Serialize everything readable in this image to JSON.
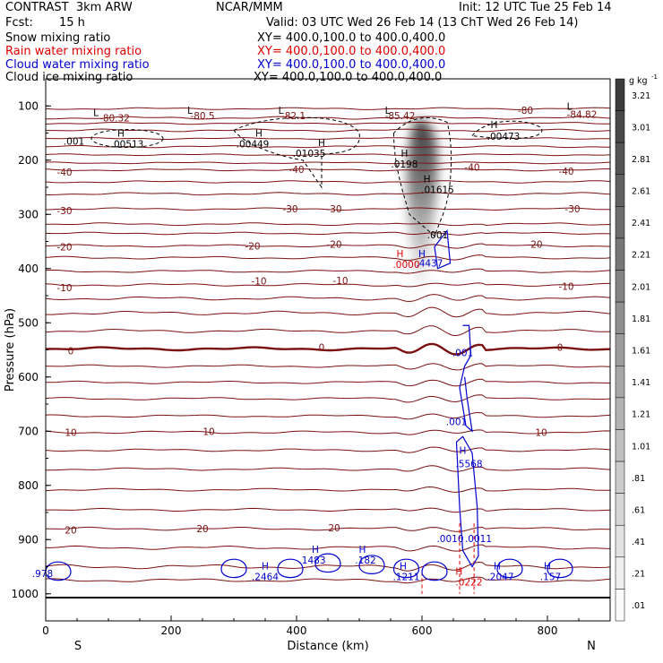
{
  "header": {
    "title": "CONTRAST  3km ARW",
    "center": "NCAR/MMM",
    "init": "Init: 12 UTC Tue 25 Feb 14",
    "fcst_label": "Fcst:",
    "fcst_value": "15 h",
    "valid": "Valid: 03 UTC Wed 26 Feb 14 (13 ChT Wed 26 Feb 14)",
    "fields": [
      {
        "name": "Snow mixing ratio",
        "xy": "XY= 400.0,100.0 to 400.0,400.0",
        "color": "#000000"
      },
      {
        "name": "Rain water mixing ratio",
        "xy": "XY= 400.0,100.0 to 400.0,400.0",
        "color": "#e00000"
      },
      {
        "name": "Cloud water mixing ratio",
        "xy": "XY= 400.0,100.0 to 400.0,400.0",
        "color": "#0000d0"
      },
      {
        "name": "Cloud ice mixing ratio",
        "xy": "XY= 400.0,100.0 to 400.0,400.0",
        "color": "#000000"
      }
    ]
  },
  "chart_data": {
    "type": "cross-section contour",
    "xlabel": "Distance (km)",
    "ylabel": "Pressure (hPa)",
    "xlim": [
      0,
      900
    ],
    "ylim": [
      1050,
      50
    ],
    "x_ticks": [
      0,
      200,
      400,
      600,
      800
    ],
    "y_ticks": [
      100,
      200,
      300,
      400,
      500,
      600,
      700,
      800,
      900,
      1000
    ],
    "x_end_labels": {
      "left": "S",
      "right": "N"
    },
    "colorbar": {
      "unit_label": "g kg",
      "unit_exp": "-1",
      "levels": [
        "3.21",
        "3.01",
        "2.81",
        "2.61",
        "2.41",
        "2.21",
        "2.01",
        "1.81",
        "1.61",
        "1.41",
        "1.21",
        "1.01",
        ".81",
        ".61",
        ".41",
        ".21",
        ".01"
      ]
    },
    "temperature_contours": [
      {
        "label": "-80.32",
        "x": 110,
        "p": 122
      },
      {
        "label": "-80.5",
        "x": 250,
        "p": 118
      },
      {
        "label": "-82.1",
        "x": 395,
        "p": 118
      },
      {
        "label": "-85.42",
        "x": 565,
        "p": 118
      },
      {
        "label": "-80",
        "x": 765,
        "p": 108
      },
      {
        "label": "-84.82",
        "x": 855,
        "p": 115
      },
      {
        "label": "-40",
        "x": 30,
        "p": 222
      },
      {
        "label": "-40",
        "x": 400,
        "p": 217
      },
      {
        "label": "-40",
        "x": 680,
        "p": 213
      },
      {
        "label": "-40",
        "x": 830,
        "p": 220
      },
      {
        "label": "-30",
        "x": 30,
        "p": 293
      },
      {
        "label": "-30",
        "x": 390,
        "p": 290
      },
      {
        "label": "-30",
        "x": 460,
        "p": 290
      },
      {
        "label": "-30",
        "x": 840,
        "p": 290
      },
      {
        "label": "-20",
        "x": 30,
        "p": 360
      },
      {
        "label": "-20",
        "x": 330,
        "p": 358
      },
      {
        "label": "-20",
        "x": 460,
        "p": 355
      },
      {
        "label": "-20",
        "x": 780,
        "p": 355
      },
      {
        "label": "-10",
        "x": 30,
        "p": 435
      },
      {
        "label": "-10",
        "x": 340,
        "p": 423
      },
      {
        "label": "-10",
        "x": 470,
        "p": 422
      },
      {
        "label": "-10",
        "x": 830,
        "p": 433
      },
      {
        "label": "0",
        "x": 40,
        "p": 552
      },
      {
        "label": "0",
        "x": 440,
        "p": 545
      },
      {
        "label": "0",
        "x": 820,
        "p": 545
      },
      {
        "label": "10",
        "x": 40,
        "p": 702
      },
      {
        "label": "10",
        "x": 260,
        "p": 700
      },
      {
        "label": "10",
        "x": 790,
        "p": 702
      },
      {
        "label": "20",
        "x": 40,
        "p": 882
      },
      {
        "label": "20",
        "x": 250,
        "p": 880
      },
      {
        "label": "20",
        "x": 460,
        "p": 878
      }
    ],
    "ice_labels": [
      {
        "label": "L",
        "x": 80,
        "p": 112
      },
      {
        "label": "L",
        "x": 230,
        "p": 108
      },
      {
        "label": "L",
        "x": 375,
        "p": 108
      },
      {
        "label": "L",
        "x": 545,
        "p": 108
      },
      {
        "label": "L",
        "x": 835,
        "p": 100
      },
      {
        "label": ".001",
        "x": 45,
        "p": 165
      },
      {
        "label": "H",
        "x": 120,
        "p": 150
      },
      {
        "label": ".00513",
        "x": 130,
        "p": 170
      },
      {
        "label": "H",
        "x": 340,
        "p": 150
      },
      {
        "label": ".00449",
        "x": 330,
        "p": 170
      },
      {
        "label": "H",
        "x": 440,
        "p": 167
      },
      {
        "label": ".01035",
        "x": 420,
        "p": 187
      },
      {
        "label": "H",
        "x": 572,
        "p": 187
      },
      {
        "label": ".0198",
        "x": 572,
        "p": 207
      },
      {
        "label": "H",
        "x": 608,
        "p": 234
      },
      {
        "label": ".01615",
        "x": 625,
        "p": 254
      },
      {
        "label": "H",
        "x": 715,
        "p": 134
      },
      {
        "label": ".00473",
        "x": 730,
        "p": 156
      },
      {
        "label": ".001",
        "x": 625,
        "p": 338
      }
    ],
    "rain_labels": [
      {
        "label": "H",
        "x": 565,
        "p": 372
      },
      {
        "label": ".0000",
        "x": 575,
        "p": 392
      },
      {
        "label": "H",
        "x": 659,
        "p": 958
      },
      {
        "label": ".0222",
        "x": 675,
        "p": 978
      }
    ],
    "cloud_water_labels": [
      {
        "label": "H",
        "x": 600,
        "p": 372
      },
      {
        "label": ".4437",
        "x": 612,
        "p": 390
      },
      {
        "label": ".001",
        "x": 665,
        "p": 555
      },
      {
        "label": ".001",
        "x": 655,
        "p": 682
      },
      {
        "label": "H",
        "x": 665,
        "p": 735
      },
      {
        "label": ".5568",
        "x": 675,
        "p": 760
      },
      {
        "label": ".0010",
        "x": 645,
        "p": 898
      },
      {
        "label": ".0011",
        "x": 690,
        "p": 898
      },
      {
        "label": ".978",
        "x": -5,
        "p": 962
      },
      {
        "label": "H",
        "x": 350,
        "p": 948
      },
      {
        "label": ".2464",
        "x": 350,
        "p": 968
      },
      {
        "label": "H",
        "x": 430,
        "p": 918
      },
      {
        "label": ".1483",
        "x": 425,
        "p": 938
      },
      {
        "label": "H",
        "x": 505,
        "p": 918
      },
      {
        "label": ".182",
        "x": 510,
        "p": 938
      },
      {
        "label": "H",
        "x": 570,
        "p": 948
      },
      {
        "label": ".1211",
        "x": 575,
        "p": 968
      },
      {
        "label": "H",
        "x": 720,
        "p": 948
      },
      {
        "label": ".2047",
        "x": 725,
        "p": 968
      },
      {
        "label": "H",
        "x": 800,
        "p": 948
      },
      {
        "label": ".157",
        "x": 805,
        "p": 968
      }
    ],
    "snow_shading_p_range": [
      120,
      470
    ]
  }
}
